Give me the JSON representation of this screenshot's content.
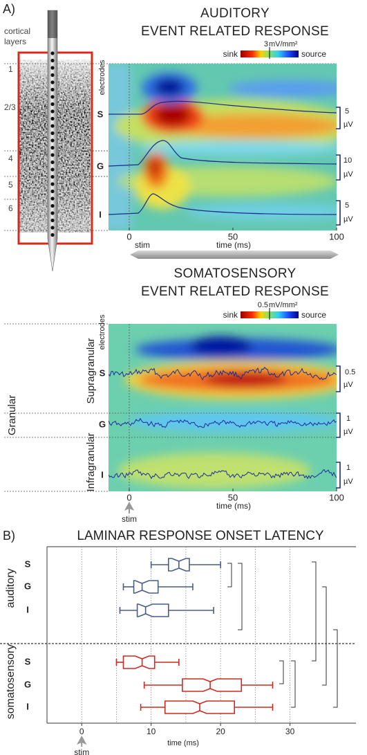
{
  "panel_a": {
    "label": "A)",
    "cortical_layers": [
      "cortical",
      "layers"
    ],
    "layers": [
      "1",
      "2/3",
      "4",
      "5",
      "6"
    ],
    "auditory": {
      "title": [
        "AUDITORY",
        "EVENT RELATED RESPONSE"
      ],
      "colorbar": {
        "sink": "sink",
        "value": "3",
        "unit": "mV/mm²",
        "source": "source"
      },
      "electrodes": "electrodes",
      "rows": [
        "S",
        "G",
        "I"
      ],
      "scale_bars": [
        {
          "value": "5",
          "unit": "µV"
        },
        {
          "value": "10",
          "unit": "µV"
        },
        {
          "value": "5",
          "unit": "µV"
        }
      ],
      "xlim": [
        -10,
        100
      ],
      "xticks": [
        0,
        50,
        100
      ],
      "stim": "stim",
      "xlabel": "time (ms)"
    },
    "somatosensory": {
      "title": [
        "SOMATOSENSORY",
        "EVENT RELATED RESPONSE"
      ],
      "colorbar": {
        "sink": "sink",
        "value": "0.5",
        "unit": "mV/mm²",
        "source": "source"
      },
      "electrodes": "electrodes",
      "regions": [
        "Supragranular",
        "Granular",
        "Infragranular"
      ],
      "rows": [
        "S",
        "G",
        "I"
      ],
      "scale_bars": [
        {
          "value": "0.5",
          "unit": "µV"
        },
        {
          "value": "1",
          "unit": "µV"
        },
        {
          "value": "1",
          "unit": "µV"
        }
      ],
      "xlim": [
        -10,
        100
      ],
      "xticks": [
        0,
        50,
        100
      ],
      "stim": "stim",
      "xlabel": "time (ms)"
    }
  },
  "chart_data": {
    "type": "box",
    "panel_label": "B)",
    "title": "LAMINAR RESPONSE ONSET LATENCY",
    "xlabel": "time (ms)",
    "stim": "stim",
    "xlim": [
      -5,
      39.5
    ],
    "xticks": [
      0,
      10,
      20,
      30
    ],
    "minor_xticks": [
      5,
      15,
      25
    ],
    "grid": true,
    "series": [
      {
        "name": "auditory",
        "color": "#4a5b8a",
        "categories": [
          "S",
          "G",
          "I"
        ],
        "boxes": [
          {
            "whislo": 10,
            "q1": 12.5,
            "med": 14,
            "q3": 15.5,
            "whishi": 20
          },
          {
            "whislo": 6,
            "q1": 7.5,
            "med": 8.7,
            "q3": 11,
            "whishi": 16
          },
          {
            "whislo": 5.5,
            "q1": 8,
            "med": 9.2,
            "q3": 12.5,
            "whishi": 19
          }
        ]
      },
      {
        "name": "somatosensory",
        "color": "#d0281e",
        "categories": [
          "S",
          "G",
          "I"
        ],
        "boxes": [
          {
            "whislo": 5,
            "q1": 6,
            "med": 8.7,
            "q3": 10.5,
            "whishi": 14
          },
          {
            "whislo": 9,
            "q1": 14.5,
            "med": 18.5,
            "q3": 23,
            "whishi": 27.5
          },
          {
            "whislo": 8.5,
            "q1": 12,
            "med": 17,
            "q3": 22,
            "whishi": 27.5
          }
        ]
      }
    ]
  }
}
